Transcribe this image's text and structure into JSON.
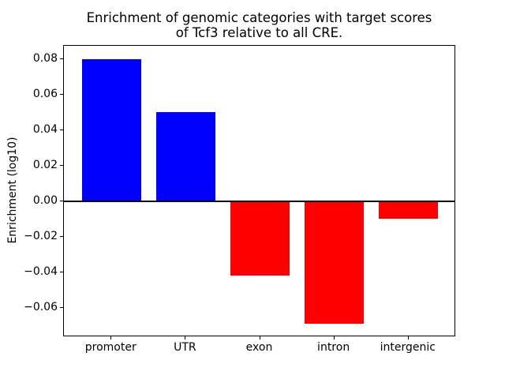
{
  "figure": {
    "title_lines": [
      "Enrichment of genomic categories with target scores",
      "of Tcf3 relative to all CRE."
    ]
  },
  "chart_data": {
    "type": "bar",
    "title": "Enrichment of genomic categories with target scores\nof Tcf3 relative to all CRE.",
    "xlabel": "",
    "ylabel": "Enrichment (log10)",
    "categories": [
      "promoter",
      "UTR",
      "exon",
      "intron",
      "intergenic"
    ],
    "values": [
      0.08,
      0.05,
      -0.042,
      -0.069,
      -0.01
    ],
    "bar_colors": [
      "#0000ff",
      "#0000ff",
      "#ff0000",
      "#ff0000",
      "#ff0000"
    ],
    "positive_color": "#0000ff",
    "negative_color": "#ff0000",
    "yticks": [
      0.08,
      0.06,
      0.04,
      0.02,
      0.0,
      -0.02,
      -0.04,
      -0.06
    ],
    "ytick_labels": [
      "0.08",
      "0.06",
      "0.04",
      "0.02",
      "0.00",
      "−0.02",
      "−0.04",
      "−0.06"
    ],
    "ylim": [
      -0.0765,
      0.0875
    ],
    "xlim": [
      -0.64,
      4.64
    ],
    "bar_width": 0.8,
    "grid": false,
    "legend": null,
    "zero_line": true,
    "axis_color": "#000000",
    "background": "#ffffff"
  }
}
